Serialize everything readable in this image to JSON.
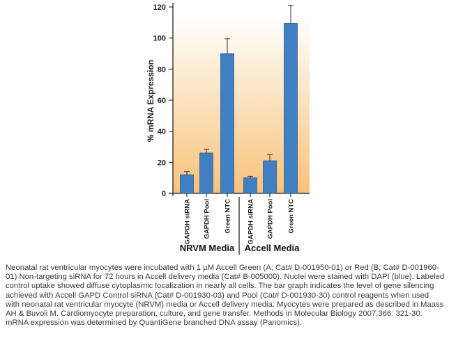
{
  "chart_data": {
    "type": "bar",
    "title": "",
    "ylabel": "% mRNA Expression",
    "ylim": [
      0,
      120
    ],
    "yticks": [
      0,
      20,
      40,
      60,
      80,
      100,
      120
    ],
    "categories": [
      "GAPDH siRNA",
      "GAPDH Pool",
      "Green NTC",
      "GAPDH siRNA",
      "GAPDH Pool",
      "Green NTC"
    ],
    "values": [
      12,
      26,
      90,
      10,
      21,
      109.5
    ],
    "error_upper": [
      14,
      28.5,
      99.5,
      11,
      25,
      121
    ],
    "groups": [
      {
        "label": "NRVM Media",
        "members": [
          0,
          1,
          2
        ]
      },
      {
        "label": "Accell Media",
        "members": [
          3,
          4,
          5
        ]
      }
    ],
    "bar_color": "#3f7fc2",
    "background_gradient": [
      "#fdf4e4",
      "#f9c27a"
    ]
  },
  "caption": "Neonatal rat ventricular myocytes were incubated with 1 µM Accell Green (A; Cat# D-001950-01) or Red (B; Cat# D-001960-01) Non-targeting siRNA for 72 hours in Accell delivery media (Cat# B-005000). Nuclei were stained with DAPI (blue). Labeled control uptake showed diffuse cytoplasmic localization in nearly all cells. The bar graph indicates the level of gene silencing achieved with Accell GAPD Control siRNA (Cat# D-001930-03) and Pool (Cat# D-001930-30) control reagents when used with neonatal rat ventricular myocyte (NRVM) media or Accell delivery media. Myocytes were prepared as described in Maass AH & Buvoli M. Cardiomyocyte preparation, culture, and gene transfer. Methods in Molecular Biology 2007;366: 321-30. mRNA expression was determined by QuantiGene branched DNA assay (Panomics)."
}
